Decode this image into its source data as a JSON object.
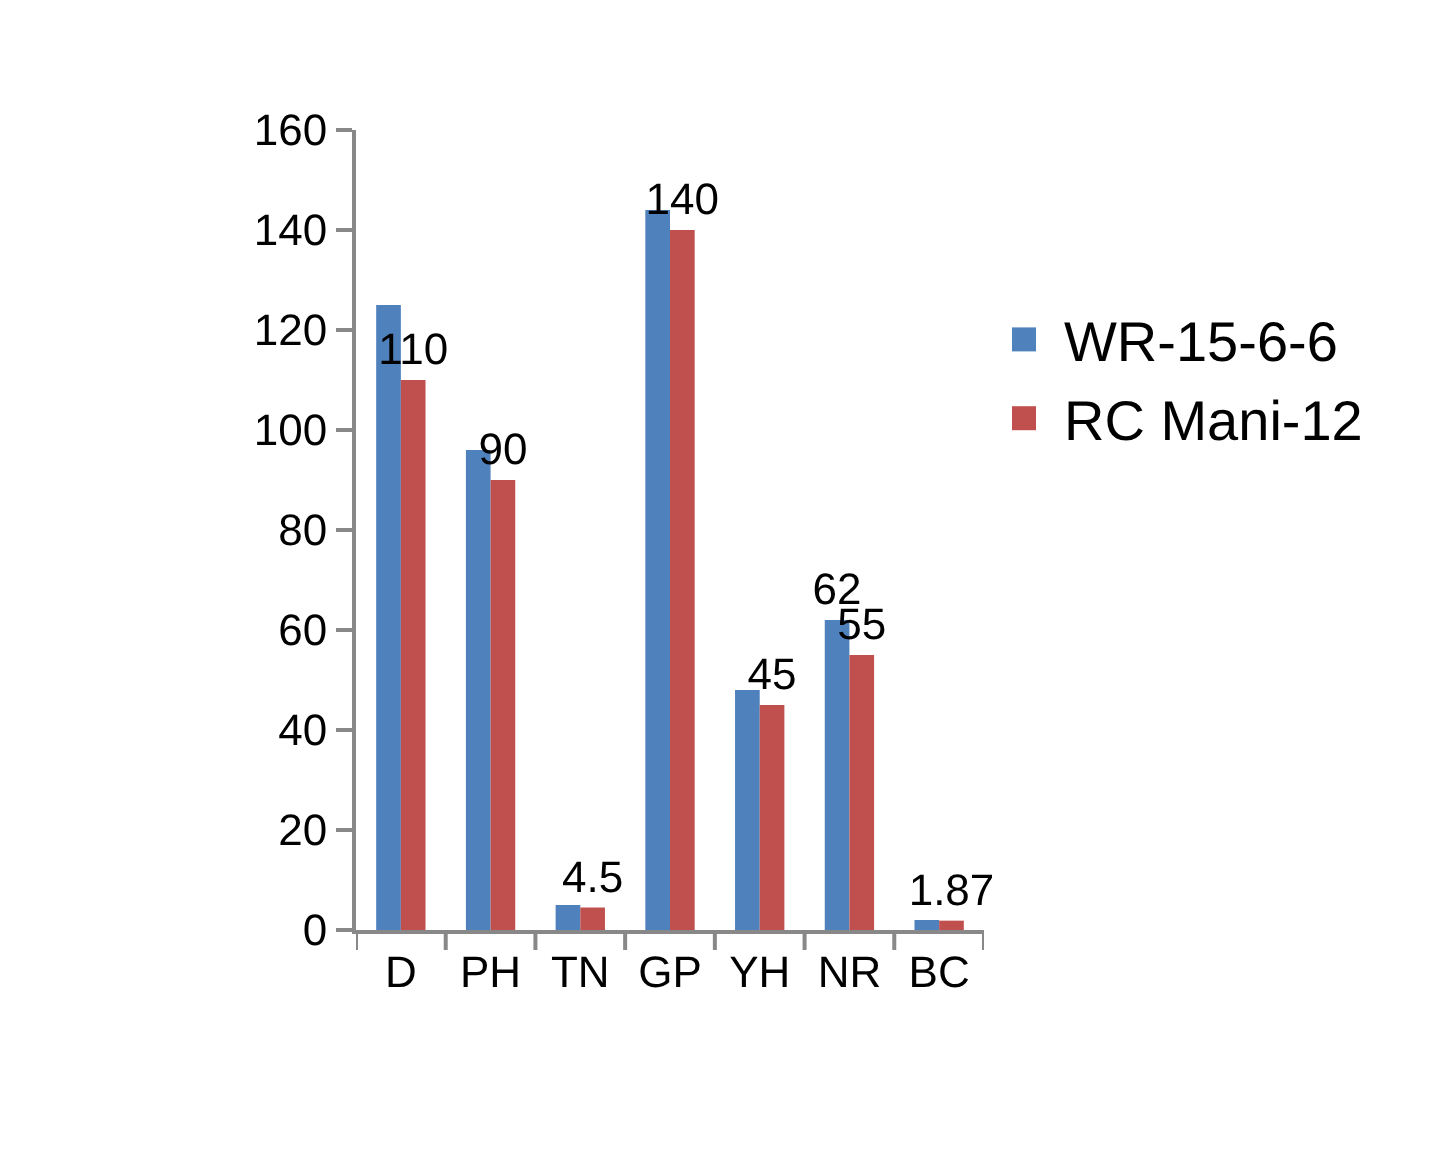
{
  "chart_data": {
    "type": "bar",
    "categories": [
      "D",
      "PH",
      "TN",
      "GP",
      "YH",
      "NR",
      "BC"
    ],
    "series": [
      {
        "name": "WR-15-6-6",
        "color": "#4f81bd",
        "values": [
          125,
          96,
          5,
          144,
          48,
          62,
          2
        ],
        "value_labels": [
          null,
          null,
          null,
          null,
          null,
          "62",
          null
        ]
      },
      {
        "name": "RC Mani-12",
        "color": "#c0504d",
        "values": [
          110,
          90,
          4.5,
          140,
          45,
          55,
          1.87
        ],
        "value_labels": [
          "110",
          "90",
          "4.5",
          "140",
          "45",
          "55",
          "1.87"
        ]
      }
    ],
    "ylim": [
      0,
      160
    ],
    "yticks": [
      0,
      20,
      40,
      60,
      80,
      100,
      120,
      140,
      160
    ],
    "grid": false,
    "legend": "right"
  }
}
